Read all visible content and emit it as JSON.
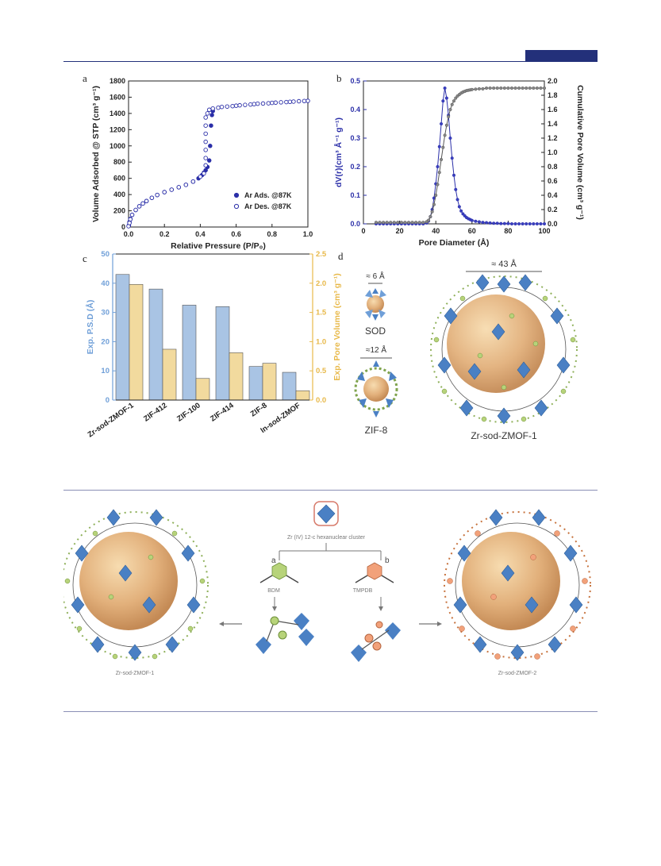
{
  "panels": {
    "a": "a",
    "b": "b",
    "c": "c",
    "d": "d"
  },
  "chart_data": [
    {
      "id": "a",
      "type": "scatter",
      "xlabel": "Relative Pressure (P/P₀)",
      "ylabel": "Volume Adsorbed @ STP (cm³ g⁻¹)",
      "xlim": [
        0,
        1.0
      ],
      "ylim": [
        0,
        1800
      ],
      "xticks": [
        "0.0",
        "0.2",
        "0.4",
        "0.6",
        "0.8",
        "1.0"
      ],
      "yticks": [
        "0",
        "200",
        "400",
        "600",
        "800",
        "1000",
        "1200",
        "1400",
        "1600",
        "1800"
      ],
      "legend_position": "bottom-right",
      "series": [
        {
          "name": "Ar Ads. @87K",
          "marker": "filled",
          "color": "#2b2fa8",
          "x": [
            0.002,
            0.005,
            0.01,
            0.02,
            0.04,
            0.06,
            0.08,
            0.1,
            0.13,
            0.16,
            0.2,
            0.24,
            0.28,
            0.32,
            0.36,
            0.39,
            0.41,
            0.42,
            0.43,
            0.44,
            0.45,
            0.455,
            0.46,
            0.465,
            0.47
          ],
          "y": [
            20,
            60,
            100,
            150,
            210,
            255,
            290,
            320,
            360,
            395,
            430,
            460,
            490,
            520,
            560,
            600,
            640,
            670,
            700,
            740,
            820,
            1000,
            1250,
            1380,
            1430
          ]
        },
        {
          "name": "Ar Des. @87K",
          "marker": "open",
          "color": "#2b2fa8",
          "x": [
            0.0,
            0.005,
            0.01,
            0.02,
            0.04,
            0.06,
            0.08,
            0.1,
            0.13,
            0.16,
            0.2,
            0.24,
            0.28,
            0.32,
            0.36,
            0.4,
            0.42,
            0.43,
            0.43,
            0.43,
            0.43,
            0.43,
            0.43,
            0.43,
            0.44,
            0.45,
            0.47,
            0.5,
            0.52,
            0.55,
            0.58,
            0.6,
            0.62,
            0.65,
            0.68,
            0.7,
            0.72,
            0.75,
            0.78,
            0.8,
            0.82,
            0.85,
            0.88,
            0.9,
            0.92,
            0.95,
            0.98,
            1.0
          ],
          "y": [
            10,
            50,
            95,
            150,
            210,
            255,
            290,
            320,
            360,
            395,
            430,
            460,
            490,
            520,
            560,
            620,
            660,
            760,
            850,
            950,
            1050,
            1150,
            1250,
            1350,
            1400,
            1445,
            1460,
            1470,
            1480,
            1485,
            1490,
            1495,
            1500,
            1505,
            1510,
            1515,
            1520,
            1522,
            1525,
            1530,
            1533,
            1537,
            1540,
            1543,
            1546,
            1550,
            1553,
            1555
          ]
        }
      ]
    },
    {
      "id": "b",
      "type": "line",
      "xlabel": "Pore Diameter (Å)",
      "ylabel": "dV(r)(cm³ Å⁻¹ g⁻¹)",
      "ylabel_right": "Cumulative Pore Volume (cm³ g⁻¹)",
      "xlim": [
        0,
        100
      ],
      "ylim": [
        0,
        0.5
      ],
      "ylim_right": [
        0,
        2.0
      ],
      "xticks": [
        "0",
        "20",
        "40",
        "60",
        "80",
        "100"
      ],
      "yticks": [
        "0.0",
        "0.1",
        "0.2",
        "0.3",
        "0.4",
        "0.5"
      ],
      "yticks_right": [
        "0.0",
        "0.2",
        "0.4",
        "0.6",
        "0.8",
        "1.0",
        "1.2",
        "1.4",
        "1.6",
        "1.8",
        "2.0"
      ],
      "series": [
        {
          "name": "dV(r)",
          "color": "#2b2fa8",
          "x": [
            7,
            9,
            11,
            13,
            15,
            17,
            19,
            21,
            23,
            25,
            27,
            29,
            31,
            33,
            35,
            36,
            37,
            38,
            39,
            40,
            41,
            42,
            43,
            44,
            45,
            46,
            47,
            48,
            49,
            50,
            51,
            52,
            53,
            54,
            55,
            56,
            57,
            58,
            59,
            60,
            62,
            64,
            66,
            68,
            70,
            72,
            74,
            76,
            78,
            80,
            82,
            84,
            86,
            88,
            90,
            92,
            94,
            96,
            98,
            100
          ],
          "y": [
            0,
            0,
            0,
            0,
            0,
            0,
            0,
            0,
            0,
            0,
            0,
            0,
            0,
            0,
            0.003,
            0.01,
            0.025,
            0.05,
            0.09,
            0.14,
            0.2,
            0.27,
            0.35,
            0.43,
            0.475,
            0.44,
            0.38,
            0.3,
            0.23,
            0.17,
            0.12,
            0.085,
            0.06,
            0.045,
            0.035,
            0.028,
            0.022,
            0.018,
            0.015,
            0.012,
            0.009,
            0.007,
            0.005,
            0.004,
            0.003,
            0.002,
            0.002,
            0.001,
            0.001,
            0.001,
            0,
            0,
            0,
            0,
            0,
            0,
            0,
            0,
            0,
            0
          ]
        },
        {
          "name": "Cumulative",
          "color": "#555555",
          "x": [
            7,
            9,
            11,
            13,
            15,
            17,
            19,
            21,
            23,
            25,
            27,
            29,
            31,
            33,
            35,
            36,
            37,
            38,
            39,
            40,
            41,
            42,
            43,
            44,
            45,
            46,
            47,
            48,
            49,
            50,
            51,
            52,
            53,
            54,
            55,
            56,
            57,
            58,
            59,
            60,
            62,
            64,
            66,
            68,
            70,
            72,
            74,
            76,
            78,
            80,
            82,
            84,
            86,
            88,
            90,
            92,
            94,
            96,
            98,
            100
          ],
          "y": [
            0.02,
            0.02,
            0.02,
            0.02,
            0.02,
            0.02,
            0.02,
            0.02,
            0.02,
            0.02,
            0.02,
            0.02,
            0.02,
            0.02,
            0.03,
            0.05,
            0.1,
            0.17,
            0.27,
            0.4,
            0.55,
            0.72,
            0.9,
            1.07,
            1.24,
            1.38,
            1.5,
            1.6,
            1.67,
            1.72,
            1.76,
            1.79,
            1.81,
            1.83,
            1.845,
            1.855,
            1.865,
            1.87,
            1.875,
            1.88,
            1.885,
            1.89,
            1.89,
            1.9,
            1.9,
            1.9,
            1.9,
            1.9,
            1.9,
            1.9,
            1.9,
            1.9,
            1.9,
            1.9,
            1.9,
            1.9,
            1.9,
            1.9,
            1.9,
            1.9
          ]
        }
      ]
    },
    {
      "id": "c",
      "type": "bar",
      "categories": [
        "Zr-sod-ZMOF-1",
        "ZIF-412",
        "ZIF-100",
        "ZIF-414",
        "ZIF-8",
        "In-sod-ZMOF"
      ],
      "ylabel": "Exp. P.S.D (Å)",
      "ylabel_right": "Exp. Pore Volume (cm³ g⁻¹)",
      "ylim": [
        0,
        50
      ],
      "ylim_right": [
        0,
        2.5
      ],
      "yticks": [
        "0",
        "10",
        "20",
        "30",
        "40",
        "50"
      ],
      "yticks_right": [
        "0.0",
        "0.5",
        "1.0",
        "1.5",
        "2.0",
        "2.5"
      ],
      "series": [
        {
          "name": "Exp. P.S.D",
          "color": "#a9c4e4",
          "values": [
            43,
            38,
            32.5,
            32,
            11.5,
            9.5
          ]
        },
        {
          "name": "Exp. Pore Volume",
          "color": "#f2da9e",
          "axis": "right",
          "values": [
            1.98,
            0.87,
            0.37,
            0.81,
            0.63,
            0.16
          ]
        }
      ]
    }
  ],
  "panel_d": {
    "sod_label": "SOD",
    "sod_size": "≈ 6 Å",
    "zif8_label": "ZIF-8",
    "zif8_size": "≈12 Å",
    "zmof_label": "Zr-sod-ZMOF-1",
    "zmof_size": "≈ 43 Å"
  },
  "scheme": {
    "cluster_label": "Zr (IV) 12-c hexanuclear cluster",
    "branch_a": "a",
    "branch_b": "b",
    "linker_a": "BDM",
    "linker_b": "TMPDB",
    "left_label": "Zr-sod-ZMOF-1",
    "right_label": "Zr-sod-ZMOF-2"
  },
  "colors": {
    "accent": "#23307a",
    "series_blue": "#2b2fa8",
    "bar_blue": "#a9c4e4",
    "bar_yellow": "#f2da9e",
    "yellow_axis": "#e8b94a",
    "blue_axis": "#6f9fd8"
  }
}
